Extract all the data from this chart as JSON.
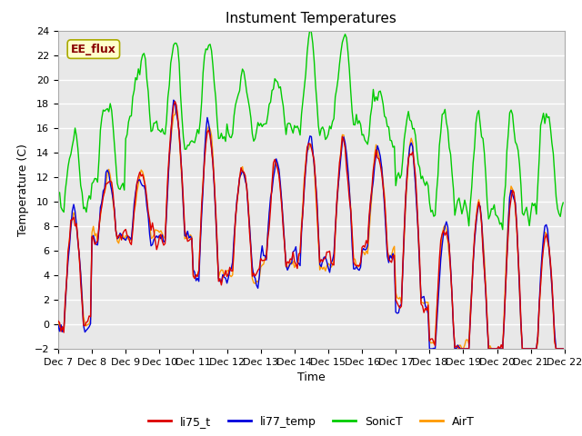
{
  "title": "Instument Temperatures",
  "xlabel": "Time",
  "ylabel": "Temperature (C)",
  "ylim": [
    -2,
    24
  ],
  "xlim": [
    0,
    360
  ],
  "x_tick_labels": [
    "Dec 7",
    "Dec 8",
    "Dec 9",
    "Dec 10",
    "Dec 11",
    "Dec 12",
    "Dec 13",
    "Dec 14",
    "Dec 15",
    "Dec 16",
    "Dec 17",
    "Dec 18",
    "Dec 19",
    "Dec 20",
    "Dec 21",
    "Dec 22"
  ],
  "x_tick_positions": [
    0,
    24,
    48,
    72,
    96,
    120,
    144,
    168,
    192,
    216,
    240,
    264,
    288,
    312,
    336,
    360
  ],
  "y_ticks": [
    -2,
    0,
    2,
    4,
    6,
    8,
    10,
    12,
    14,
    16,
    18,
    20,
    22,
    24
  ],
  "colors": {
    "li75_t": "#dd0000",
    "li77_temp": "#0000dd",
    "SonicT": "#00cc00",
    "AirT": "#ff9900"
  },
  "annotation_text": "EE_flux",
  "annotation_box_facecolor": "#ffffcc",
  "annotation_box_edgecolor": "#aaaa00",
  "annotation_text_color": "#880000",
  "fig_bg": "#ffffff",
  "plot_bg": "#e8e8e8",
  "grid_color": "#ffffff",
  "title_fontsize": 11,
  "axis_label_fontsize": 9,
  "tick_fontsize": 8,
  "legend_fontsize": 9,
  "line_width": 1.0
}
